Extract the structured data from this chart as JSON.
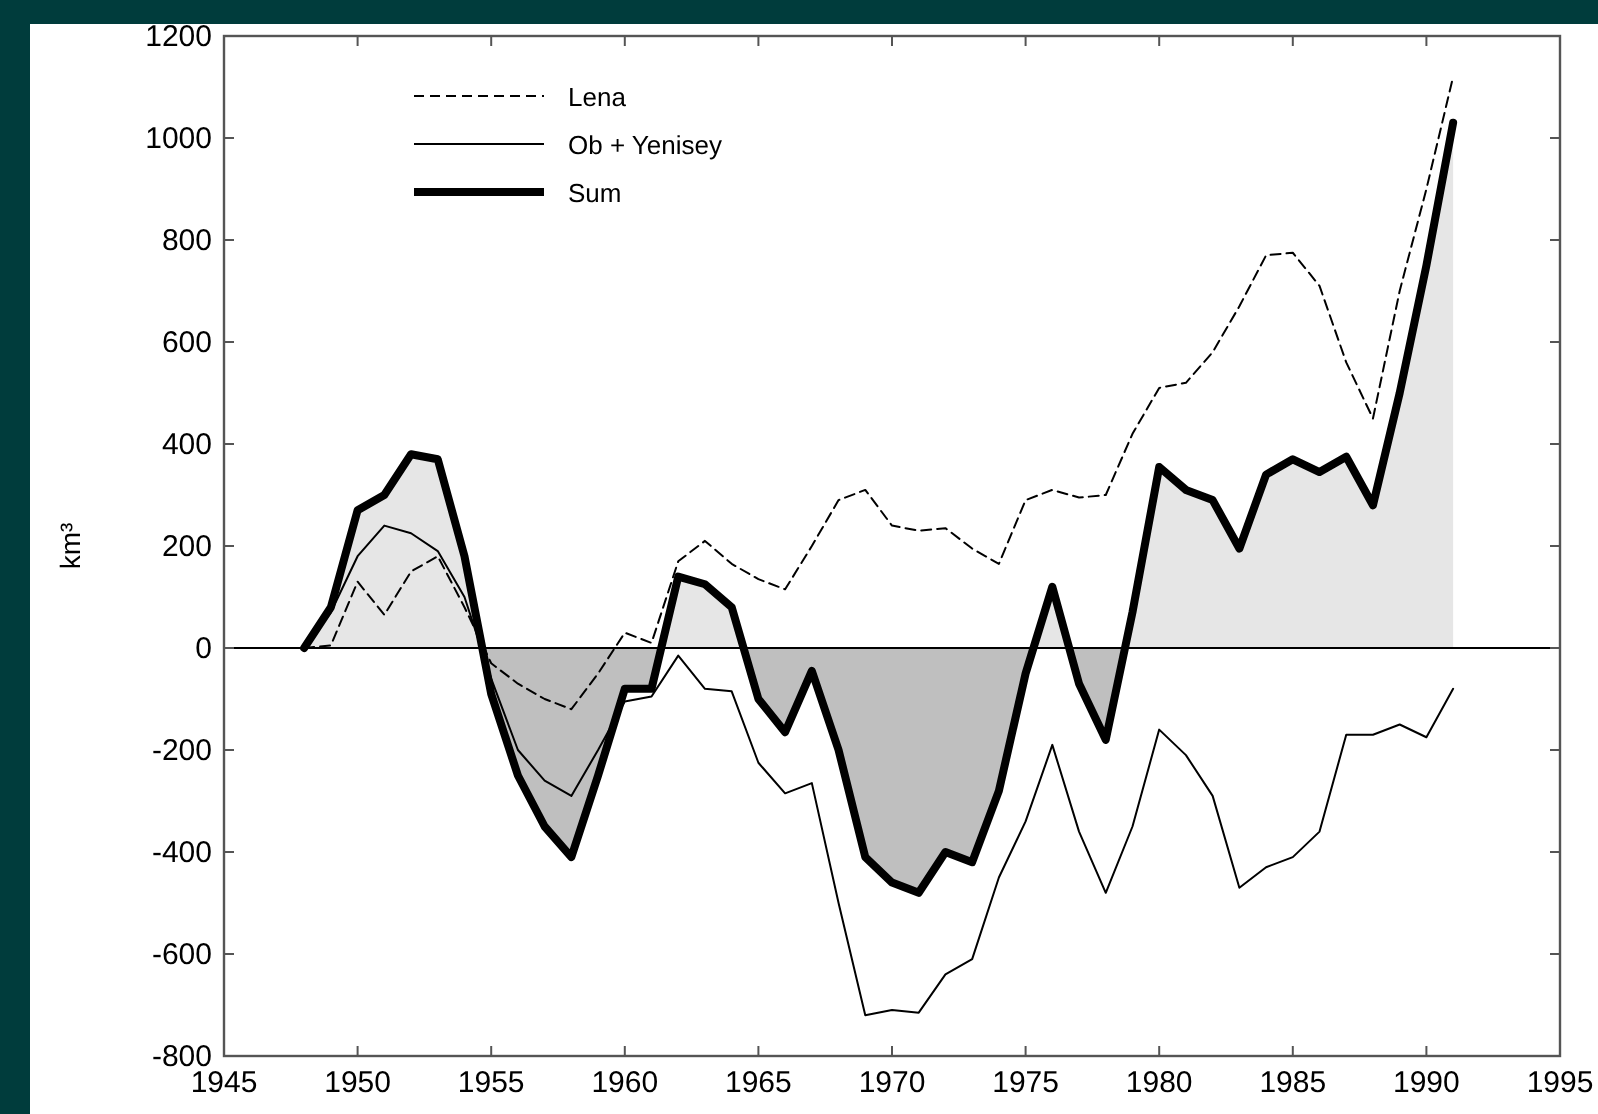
{
  "chart_data": {
    "type": "line",
    "ylabel": "km³",
    "x": [
      1948,
      1949,
      1950,
      1951,
      1952,
      1953,
      1954,
      1955,
      1956,
      1957,
      1958,
      1959,
      1960,
      1961,
      1962,
      1963,
      1964,
      1965,
      1966,
      1967,
      1968,
      1969,
      1970,
      1971,
      1972,
      1973,
      1974,
      1975,
      1976,
      1977,
      1978,
      1979,
      1980,
      1981,
      1982,
      1983,
      1984,
      1985,
      1986,
      1987,
      1988,
      1989,
      1990,
      1991
    ],
    "series": [
      {
        "name": "Lena",
        "color": "#000000",
        "line_style": "dashed",
        "values": [
          0,
          5,
          130,
          65,
          150,
          180,
          80,
          -30,
          -70,
          -100,
          -120,
          -50,
          30,
          10,
          170,
          210,
          165,
          135,
          115,
          200,
          290,
          310,
          240,
          230,
          235,
          195,
          165,
          290,
          310,
          295,
          300,
          420,
          510,
          520,
          580,
          670,
          770,
          775,
          710,
          560,
          450,
          700,
          900,
          1120
        ]
      },
      {
        "name": "Ob + Yenisey",
        "color": "#000000",
        "line_style": "solid",
        "values": [
          0,
          70,
          180,
          240,
          225,
          190,
          100,
          -60,
          -200,
          -260,
          -290,
          -200,
          -105,
          -95,
          -15,
          -80,
          -85,
          -225,
          -285,
          -265,
          -500,
          -720,
          -710,
          -715,
          -640,
          -610,
          -450,
          -340,
          -190,
          -360,
          -480,
          -350,
          -160,
          -210,
          -290,
          -470,
          -430,
          -410,
          -360,
          -170,
          -170,
          -150,
          -175,
          -80
        ]
      },
      {
        "name": "Sum",
        "type": "area",
        "color": "#000000",
        "line_style": "solid",
        "values": [
          0,
          80,
          270,
          300,
          380,
          370,
          180,
          -90,
          -250,
          -350,
          -410,
          -250,
          -80,
          -80,
          140,
          125,
          80,
          -100,
          -165,
          -45,
          -200,
          -410,
          -460,
          -480,
          -400,
          -420,
          -280,
          -50,
          120,
          -70,
          -180,
          70,
          355,
          310,
          290,
          195,
          340,
          370,
          345,
          375,
          280,
          500,
          750,
          1030
        ]
      }
    ],
    "xlim": [
      1945,
      1995
    ],
    "xticks": [
      1945,
      1950,
      1955,
      1960,
      1965,
      1970,
      1975,
      1980,
      1985,
      1990,
      1995
    ],
    "ylim": [
      -800,
      1200
    ],
    "yticks": [
      -800,
      -600,
      -400,
      -200,
      0,
      200,
      400,
      600,
      800,
      1000,
      1200
    ],
    "ref_lines": [
      {
        "axis": "y",
        "value": 0,
        "color": "#000000"
      }
    ],
    "grid": false,
    "legend": "top left"
  }
}
